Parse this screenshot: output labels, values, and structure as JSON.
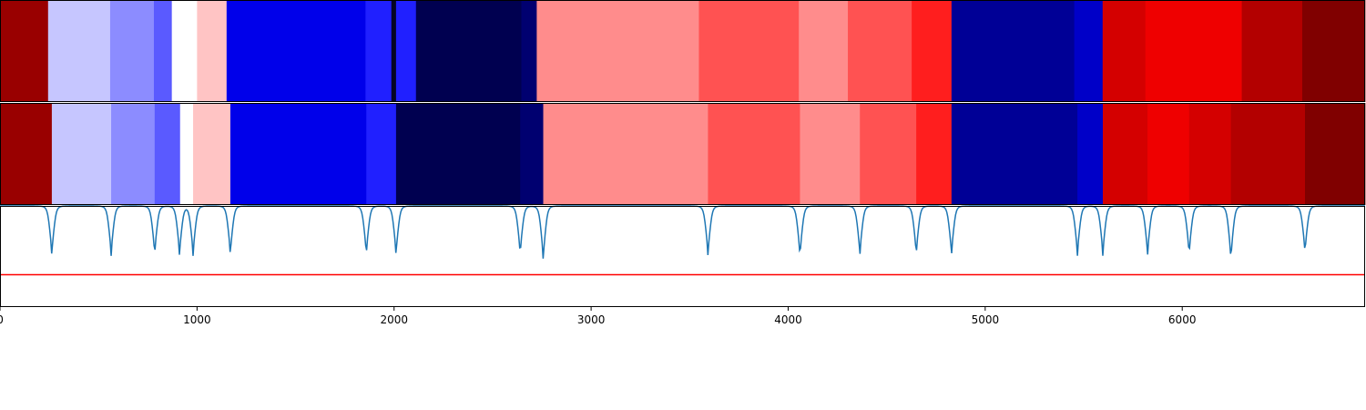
{
  "chart_data": {
    "type": "heatmap",
    "x_domain": [
      0,
      6928
    ],
    "x_ticks": [
      0,
      1000,
      2000,
      3000,
      4000,
      5000,
      6000
    ],
    "x_tick_labels": [
      "0",
      "1000",
      "2000",
      "3000",
      "4000",
      "5000",
      "6000"
    ],
    "colormap": "seismic",
    "rows": [
      {
        "segments": [
          {
            "start": 0,
            "end": 244,
            "color": "#990000"
          },
          {
            "start": 244,
            "end": 559,
            "color": "#c6c6ff"
          },
          {
            "start": 559,
            "end": 781,
            "color": "#8c8cff"
          },
          {
            "start": 781,
            "end": 872,
            "color": "#5a5aff"
          },
          {
            "start": 872,
            "end": 1000,
            "color": "#ffffff"
          },
          {
            "start": 1000,
            "end": 1150,
            "color": "#ffc4c4"
          },
          {
            "start": 1150,
            "end": 1855,
            "color": "#0000ea"
          },
          {
            "start": 1855,
            "end": 1986,
            "color": "#2020ff"
          },
          {
            "start": 1986,
            "end": 2010,
            "color": "#050522"
          },
          {
            "start": 2010,
            "end": 2111,
            "color": "#2020ff"
          },
          {
            "start": 2111,
            "end": 2646,
            "color": "#000050"
          },
          {
            "start": 2646,
            "end": 2724,
            "color": "#000070"
          },
          {
            "start": 2724,
            "end": 3547,
            "color": "#ff8c8c"
          },
          {
            "start": 3547,
            "end": 4054,
            "color": "#ff5252"
          },
          {
            "start": 4054,
            "end": 4303,
            "color": "#ff8c8c"
          },
          {
            "start": 4303,
            "end": 4627,
            "color": "#ff5252"
          },
          {
            "start": 4627,
            "end": 4829,
            "color": "#ff1e1e"
          },
          {
            "start": 4829,
            "end": 5452,
            "color": "#000096"
          },
          {
            "start": 5452,
            "end": 5596,
            "color": "#0000c8"
          },
          {
            "start": 5596,
            "end": 5813,
            "color": "#d40000"
          },
          {
            "start": 5813,
            "end": 6302,
            "color": "#ef0000"
          },
          {
            "start": 6302,
            "end": 6609,
            "color": "#b30000"
          },
          {
            "start": 6609,
            "end": 6928,
            "color": "#800000"
          }
        ]
      },
      {
        "segments": [
          {
            "start": 0,
            "end": 263,
            "color": "#990000"
          },
          {
            "start": 263,
            "end": 564,
            "color": "#c6c6ff"
          },
          {
            "start": 564,
            "end": 785,
            "color": "#8c8cff"
          },
          {
            "start": 785,
            "end": 914,
            "color": "#5a5aff"
          },
          {
            "start": 914,
            "end": 980,
            "color": "#ffffff"
          },
          {
            "start": 980,
            "end": 1169,
            "color": "#ffc4c4"
          },
          {
            "start": 1169,
            "end": 1859,
            "color": "#0000ea"
          },
          {
            "start": 1859,
            "end": 2010,
            "color": "#2020ff"
          },
          {
            "start": 2010,
            "end": 2640,
            "color": "#000050"
          },
          {
            "start": 2640,
            "end": 2757,
            "color": "#000070"
          },
          {
            "start": 2757,
            "end": 3593,
            "color": "#ff8c8c"
          },
          {
            "start": 3593,
            "end": 4060,
            "color": "#ff5252"
          },
          {
            "start": 4060,
            "end": 4364,
            "color": "#ff8c8c"
          },
          {
            "start": 4364,
            "end": 4650,
            "color": "#ff5252"
          },
          {
            "start": 4650,
            "end": 4829,
            "color": "#ff1e1e"
          },
          {
            "start": 4829,
            "end": 5468,
            "color": "#000096"
          },
          {
            "start": 5468,
            "end": 5597,
            "color": "#0000c8"
          },
          {
            "start": 5597,
            "end": 5824,
            "color": "#d40000"
          },
          {
            "start": 5824,
            "end": 6035,
            "color": "#ef0000"
          },
          {
            "start": 6035,
            "end": 6247,
            "color": "#d40000"
          },
          {
            "start": 6247,
            "end": 6623,
            "color": "#b30000"
          },
          {
            "start": 6623,
            "end": 6928,
            "color": "#800000"
          }
        ]
      }
    ],
    "signal": {
      "color": "#1f77b4",
      "ylim": [
        0,
        1
      ],
      "baseline": 1.0,
      "threshold": {
        "value": 0.32,
        "color": "#ff0000"
      },
      "dips": [
        {
          "x": 263,
          "depth": 0.5
        },
        {
          "x": 564,
          "depth": 0.5
        },
        {
          "x": 785,
          "depth": 0.5
        },
        {
          "x": 911,
          "depth": 0.5
        },
        {
          "x": 980,
          "depth": 0.5
        },
        {
          "x": 1169,
          "depth": 0.5
        },
        {
          "x": 1859,
          "depth": 0.5
        },
        {
          "x": 2010,
          "depth": 0.5
        },
        {
          "x": 2640,
          "depth": 0.5
        },
        {
          "x": 2757,
          "depth": 0.55
        },
        {
          "x": 3593,
          "depth": 0.5
        },
        {
          "x": 4060,
          "depth": 0.52
        },
        {
          "x": 4364,
          "depth": 0.5
        },
        {
          "x": 4650,
          "depth": 0.5
        },
        {
          "x": 4829,
          "depth": 0.5
        },
        {
          "x": 5468,
          "depth": 0.5
        },
        {
          "x": 5597,
          "depth": 0.5
        },
        {
          "x": 5824,
          "depth": 0.5
        },
        {
          "x": 6035,
          "depth": 0.5
        },
        {
          "x": 6247,
          "depth": 0.55
        },
        {
          "x": 6623,
          "depth": 0.48
        }
      ]
    }
  }
}
